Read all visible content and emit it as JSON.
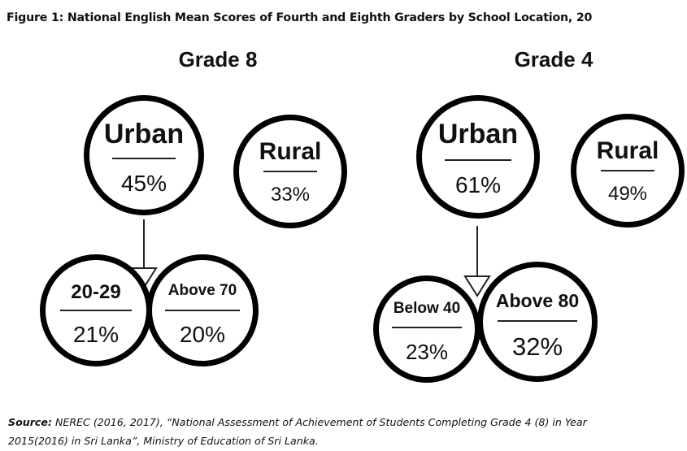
{
  "title": "Figure 1: National English Mean Scores of Fourth and Eighth Graders by School Location, 20",
  "grade8": {
    "heading": "Grade 8",
    "urban": {
      "label": "Urban",
      "value": "45%"
    },
    "rural": {
      "label": "Rural",
      "value": "33%"
    },
    "low": {
      "label": "20-29",
      "value": "21%"
    },
    "high": {
      "label": "Above 70",
      "value": "20%"
    }
  },
  "grade4": {
    "heading": "Grade 4",
    "urban": {
      "label": "Urban",
      "value": "61%"
    },
    "rural": {
      "label": "Rural",
      "value": "49%"
    },
    "low": {
      "label": "Below 40",
      "value": "23%"
    },
    "high": {
      "label": "Above 80",
      "value": "32%"
    }
  },
  "source": {
    "label": "Source:",
    "line1": "NEREC (2016, 2017), “National Assessment of Achievement of Students Completing Grade 4 (8) in Year",
    "line2": "2015(2016) in Sri Lanka”, Ministry of Education of Sri Lanka."
  }
}
